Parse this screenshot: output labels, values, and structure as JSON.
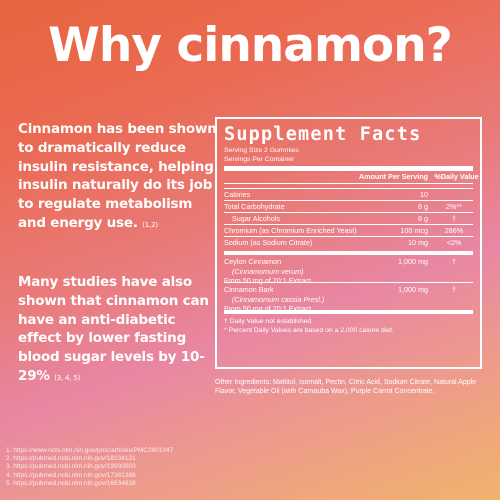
{
  "title": "Why cinnamon?",
  "paragraph1": {
    "text": "Cinnamon has been shown to dramatically reduce insulin resistance, helping insulin naturally do its job to regulate metabolism and energy use.",
    "cite": "(1,2)"
  },
  "paragraph2": {
    "text": "Many studies have also shown that cinnamon can have an anti-diabetic effect by lower fasting blood sugar levels by 10-29%",
    "cite": "(3, 4, 5)"
  },
  "references": [
    "1. https://www.ncbi.nlm.nih.gov/pmc/articles/PMC2901047",
    "2. https://pubmed.ncbi.nlm.nih.gov/18234131",
    "3. https://pubmed.ncbi.nlm.nih.gov/19930003",
    "4. https://pubmed.ncbi.nlm.nih.gov/17381386",
    "5. https://pubmed.ncbi.nlm.nih.gov/16634838"
  ],
  "facts": {
    "title": "Supplement Facts",
    "serving_size": "Serving Size 2 Gummies",
    "servings_per_container": "Servings Per Container",
    "header_amount": "Amount Per Serving",
    "header_dv": "%Daily Value",
    "rows": [
      {
        "name": "Calories",
        "amount": "10",
        "dv": ""
      },
      {
        "name": "Total Carbohydrate",
        "amount": "6 g",
        "dv": "2%**"
      },
      {
        "name": "Sugar Alcohols",
        "amount": "6 g",
        "dv": "†"
      },
      {
        "name": "Chromium (as Chromium Enriched Yeast)",
        "amount": "100 mcg",
        "dv": "286%"
      },
      {
        "name": "Sodium (as Sodium Citrate)",
        "amount": "10 mg",
        "dv": "<2%"
      }
    ],
    "ceylon": {
      "name": "Ceylon Cinnamon",
      "latin": "(Cinnamomum verum)",
      "extract": "From 50 mg of 20:1 Extract",
      "amount": "1,000 mg",
      "dv": "†"
    },
    "cassia": {
      "name": "Cinnamon Bark",
      "latin": "(Cinnamomum cassia Presl.)",
      "extract": "From 50 mg of 20:1 Extract",
      "amount": "1,000 mg",
      "dv": "†"
    },
    "footnote1": "† Daily Value not established.",
    "footnote2": "* Percent Daily Values are based on a 2,000 calorie diet."
  },
  "other_ingredients": "Other Ingredients: Maltitol, Isomalt, Pectin, Citric Acid, Sodium Citrate, Natural Apple Flavor, Vegetable Oil (with Carnauba Wax), Purple Carrot Concentrate."
}
